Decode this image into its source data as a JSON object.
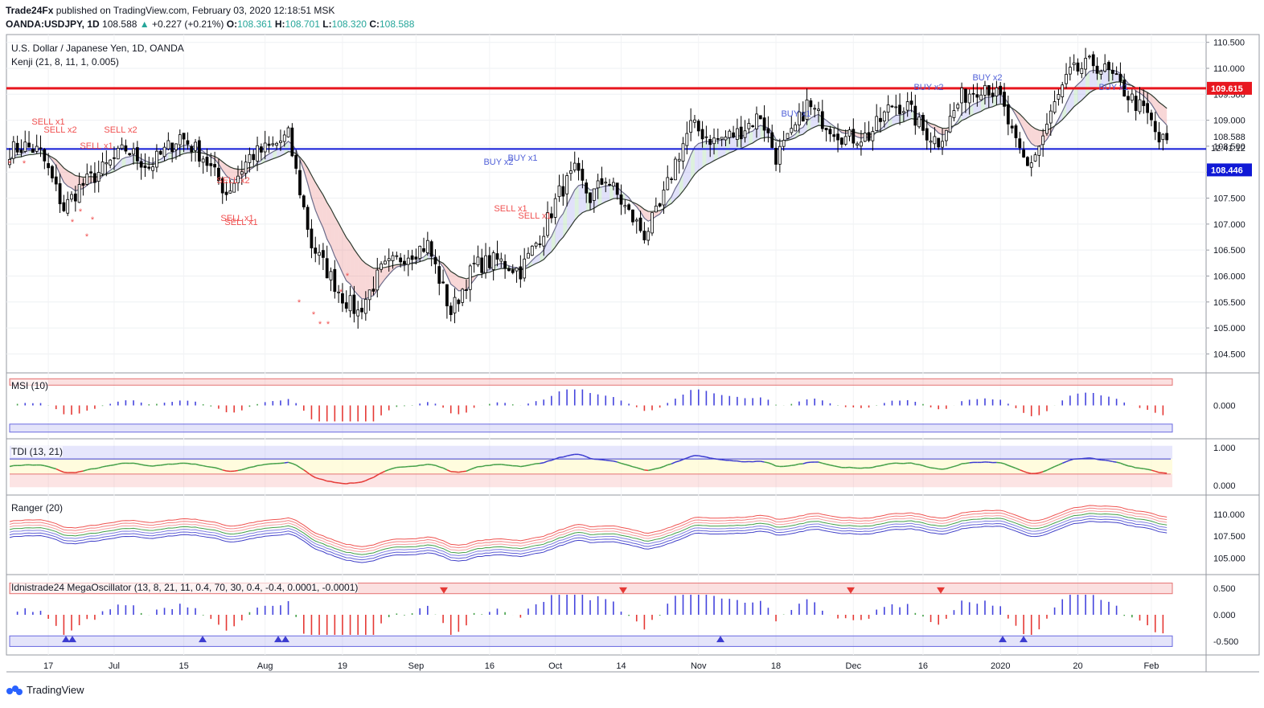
{
  "header": {
    "publisher": "Trade24Fx",
    "published_text": "published on TradingView.com, February 03, 2020 12:18:51 MSK",
    "symbol": "OANDA:USDJPY, 1D",
    "last": "108.588",
    "change": "+0.227 (+0.21%)",
    "o_label": "O:",
    "o": "108.361",
    "h_label": "H:",
    "h": "108.701",
    "l_label": "L:",
    "l": "108.320",
    "c_label": "C:",
    "c": "108.588"
  },
  "main_pane": {
    "title": "U.S. Dollar / Japanese Yen, 1D, OANDA",
    "indicator": "Kenji (21, 8, 11, 1, 0.005)"
  },
  "price_labels": {
    "red_level": "109.615",
    "last_price": "108.588",
    "countdown": "12:41:12",
    "blue_level": "108.446"
  },
  "panes": {
    "msi": "MSI (10)",
    "tdi": "TDI (13, 21)",
    "ranger": "Ranger (20)",
    "mega": "Idnistrade24 MegaOscillator (13, 8, 21, 11, 0.4, 70, 30, 0.4, -0.4, 0.0001, -0.0001)"
  },
  "brand": "TradingView",
  "colors": {
    "up": "#ffffff",
    "down": "#000000",
    "red_line": "#e8171f",
    "blue_line": "#1019d6",
    "signal_sell": "#f05050",
    "signal_buy": "#5060d8"
  },
  "chart_data": [
    {
      "type": "candlestick",
      "title": "U.S. Dollar / Japanese Yen, 1D, OANDA",
      "x_tick_labels": [
        "17",
        "Jul",
        "15",
        "Aug",
        "19",
        "Sep",
        "16",
        "Oct",
        "14",
        "Nov",
        "18",
        "Dec",
        "16",
        "2020",
        "20",
        "Feb"
      ],
      "y_ticks": [
        104.5,
        105.0,
        105.5,
        106.0,
        106.5,
        107.0,
        107.5,
        108.0,
        108.5,
        109.0,
        109.5,
        110.0,
        110.5
      ],
      "ylim": [
        104.15,
        110.65
      ],
      "horizontal_levels": [
        109.615,
        108.446
      ],
      "signals": [
        "SELL x1",
        "SELL x2",
        "SELL x1",
        "SELL x2",
        "SELL x1",
        "SELL x1",
        "BUY x2",
        "BUY x1",
        "BUY x1",
        "BUY x2",
        "BUY x2",
        "BUY x1"
      ],
      "close_path": [
        [
          108.42,
          0
        ],
        [
          108.5,
          4
        ],
        [
          108.38,
          8
        ],
        [
          107.3,
          14
        ],
        [
          107.7,
          18
        ],
        [
          108.05,
          24
        ],
        [
          108.45,
          30
        ],
        [
          108.1,
          36
        ],
        [
          108.7,
          44
        ],
        [
          108.3,
          50
        ],
        [
          107.6,
          56
        ],
        [
          108.3,
          62
        ],
        [
          108.5,
          68
        ],
        [
          108.7,
          72
        ],
        [
          106.6,
          78
        ],
        [
          105.6,
          86
        ],
        [
          105.3,
          90
        ],
        [
          106.1,
          96
        ],
        [
          106.4,
          102
        ],
        [
          106.6,
          108
        ],
        [
          105.3,
          114
        ],
        [
          106.2,
          120
        ],
        [
          106.3,
          126
        ],
        [
          106.1,
          132
        ],
        [
          106.9,
          138
        ],
        [
          107.6,
          142
        ],
        [
          108.0,
          146
        ],
        [
          107.5,
          150
        ],
        [
          107.9,
          154
        ],
        [
          107.2,
          160
        ],
        [
          106.8,
          164
        ],
        [
          107.3,
          168
        ],
        [
          108.2,
          172
        ],
        [
          108.9,
          176
        ],
        [
          108.6,
          182
        ],
        [
          108.75,
          188
        ],
        [
          109.1,
          194
        ],
        [
          108.3,
          198
        ],
        [
          108.7,
          202
        ],
        [
          109.3,
          206
        ],
        [
          109.0,
          210
        ],
        [
          108.65,
          216
        ],
        [
          108.7,
          222
        ],
        [
          109.3,
          228
        ],
        [
          109.25,
          232
        ],
        [
          108.8,
          236
        ],
        [
          108.6,
          240
        ],
        [
          109.45,
          246
        ],
        [
          109.7,
          252
        ],
        [
          109.4,
          256
        ],
        [
          108.5,
          260
        ],
        [
          108.1,
          263
        ],
        [
          108.5,
          266
        ],
        [
          109.3,
          270
        ],
        [
          109.9,
          274
        ],
        [
          110.1,
          280
        ],
        [
          109.9,
          284
        ],
        [
          109.4,
          290
        ],
        [
          109.1,
          294
        ],
        [
          108.6,
          297
        ]
      ],
      "msi_ylim": [
        -0.55,
        0.55
      ],
      "tdi_ylim": [
        -0.15,
        1.15
      ],
      "ranger_ylim": [
        103.6,
        111.8
      ],
      "mega_ylim": [
        -0.7,
        0.7
      ],
      "msi_ticks": [
        "0.000"
      ],
      "tdi_ticks": [
        "1.000",
        "0.000"
      ],
      "ranger_ticks": [
        "110.000",
        "107.500",
        "105.000"
      ],
      "mega_ticks": [
        "0.500",
        "0.000",
        "-0.500"
      ]
    }
  ]
}
